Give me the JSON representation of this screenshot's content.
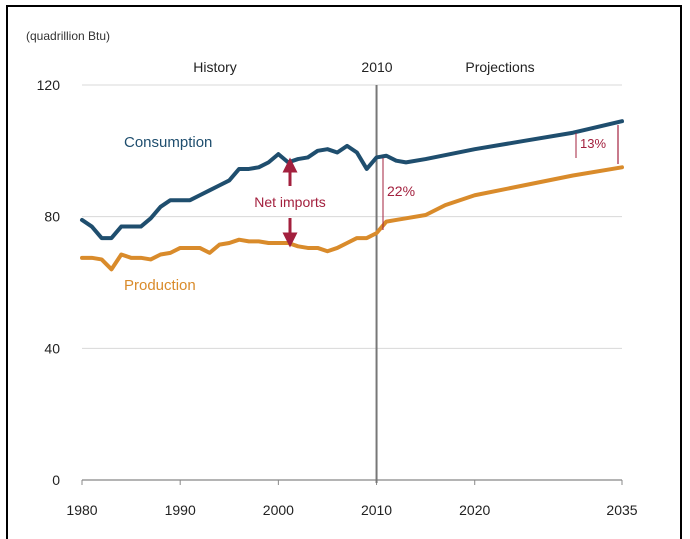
{
  "chart_data": {
    "type": "line",
    "unit_label": "(quadrillion Btu)",
    "x_ticks": [
      1980,
      1990,
      2000,
      2010,
      2020,
      2035
    ],
    "y_ticks": [
      0,
      40,
      80,
      120
    ],
    "xlim": [
      1980,
      2035
    ],
    "ylim": [
      0,
      120
    ],
    "grid": "horizontal",
    "divider_year": 2010,
    "divider_label": "2010",
    "section_labels": {
      "history": "History",
      "projections": "Projections"
    },
    "annotations": {
      "net_imports": "Net imports",
      "gap_2010": "22%",
      "gap_2035": "13%"
    },
    "series": [
      {
        "name": "Consumption",
        "color": "#1f4e6e",
        "points": [
          [
            1980,
            79
          ],
          [
            1981,
            77
          ],
          [
            1982,
            73.5
          ],
          [
            1983,
            73.5
          ],
          [
            1984,
            77
          ],
          [
            1985,
            77
          ],
          [
            1986,
            77
          ],
          [
            1987,
            79.5
          ],
          [
            1988,
            83
          ],
          [
            1989,
            85
          ],
          [
            1990,
            85
          ],
          [
            1991,
            85
          ],
          [
            1992,
            86.5
          ],
          [
            1993,
            88
          ],
          [
            1994,
            89.5
          ],
          [
            1995,
            91
          ],
          [
            1996,
            94.5
          ],
          [
            1997,
            94.5
          ],
          [
            1998,
            95
          ],
          [
            1999,
            96.5
          ],
          [
            2000,
            99
          ],
          [
            2001,
            96.5
          ],
          [
            2002,
            97.5
          ],
          [
            2003,
            98
          ],
          [
            2004,
            100
          ],
          [
            2005,
            100.5
          ],
          [
            2006,
            99.5
          ],
          [
            2007,
            101.5
          ],
          [
            2008,
            99.5
          ],
          [
            2009,
            94.5
          ],
          [
            2010,
            98
          ],
          [
            2011,
            98.5
          ],
          [
            2012,
            97
          ],
          [
            2013,
            96.5
          ],
          [
            2015,
            97.5
          ],
          [
            2020,
            100.5
          ],
          [
            2025,
            103
          ],
          [
            2030,
            105.5
          ],
          [
            2035,
            109
          ]
        ]
      },
      {
        "name": "Production",
        "color": "#d98b2b",
        "points": [
          [
            1980,
            67.5
          ],
          [
            1981,
            67.5
          ],
          [
            1982,
            67
          ],
          [
            1983,
            64
          ],
          [
            1984,
            68.5
          ],
          [
            1985,
            67.5
          ],
          [
            1986,
            67.5
          ],
          [
            1987,
            67
          ],
          [
            1988,
            68.5
          ],
          [
            1989,
            69
          ],
          [
            1990,
            70.5
          ],
          [
            1991,
            70.5
          ],
          [
            1992,
            70.5
          ],
          [
            1993,
            69
          ],
          [
            1994,
            71.5
          ],
          [
            1995,
            72
          ],
          [
            1996,
            73
          ],
          [
            1997,
            72.5
          ],
          [
            1998,
            72.5
          ],
          [
            1999,
            72
          ],
          [
            2000,
            72
          ],
          [
            2001,
            72
          ],
          [
            2002,
            71
          ],
          [
            2003,
            70.5
          ],
          [
            2004,
            70.5
          ],
          [
            2005,
            69.5
          ],
          [
            2006,
            70.5
          ],
          [
            2007,
            72
          ],
          [
            2008,
            73.5
          ],
          [
            2009,
            73.5
          ],
          [
            2010,
            75
          ],
          [
            2011,
            78.5
          ],
          [
            2012,
            79
          ],
          [
            2013,
            79.5
          ],
          [
            2015,
            80.5
          ],
          [
            2017,
            83.5
          ],
          [
            2020,
            86.5
          ],
          [
            2025,
            89.5
          ],
          [
            2030,
            92.5
          ],
          [
            2035,
            95
          ]
        ]
      }
    ]
  }
}
